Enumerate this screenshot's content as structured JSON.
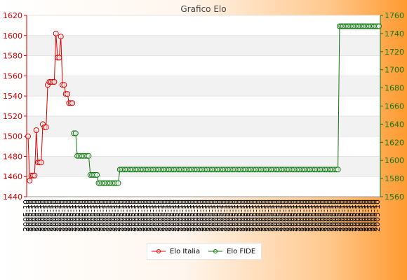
{
  "chart_data": {
    "type": "line",
    "title": "Grafico Elo",
    "y_left": {
      "min": 1440,
      "max": 1620,
      "ticks": [
        "1620",
        "1600",
        "1580",
        "1560",
        "1540",
        "1520",
        "1500",
        "1480",
        "1460",
        "1440"
      ]
    },
    "y_right": {
      "min": 1560,
      "max": 1760,
      "ticks": [
        "1760",
        "1740",
        "1720",
        "1700",
        "1680",
        "1660",
        "1640",
        "1620",
        "1600",
        "1580",
        "1560"
      ]
    },
    "grid": true,
    "legend": "bottom",
    "series": [
      {
        "name": "Elo Italia",
        "axis": "left",
        "color": "#dd0000",
        "points": [
          [
            0,
            1500
          ],
          [
            1,
            1456
          ],
          [
            2,
            1461
          ],
          [
            3,
            1461
          ],
          [
            4,
            1461
          ],
          [
            5,
            1506
          ],
          [
            6,
            1474
          ],
          [
            7,
            1474
          ],
          [
            8,
            1474
          ],
          [
            9,
            1512
          ],
          [
            10,
            1509
          ],
          [
            11,
            1509
          ],
          [
            12,
            1551
          ],
          [
            13,
            1554
          ],
          [
            14,
            1554
          ],
          [
            15,
            1554
          ],
          [
            16,
            1554
          ],
          [
            17,
            1602
          ],
          [
            18,
            1578
          ],
          [
            19,
            1578
          ],
          [
            20,
            1599
          ],
          [
            21,
            1551
          ],
          [
            22,
            1551
          ],
          [
            23,
            1542
          ],
          [
            24,
            1542
          ],
          [
            25,
            1533
          ],
          [
            26,
            1533
          ],
          [
            27,
            1533
          ]
        ]
      },
      {
        "name": "Elo FIDE",
        "axis": "right",
        "color": "#117711",
        "points": [
          [
            28,
            1630
          ],
          [
            29,
            1630
          ],
          [
            30,
            1605
          ],
          [
            31,
            1605
          ],
          [
            32,
            1605
          ],
          [
            33,
            1605
          ],
          [
            34,
            1605
          ],
          [
            35,
            1605
          ],
          [
            36,
            1605
          ],
          [
            37,
            1605
          ],
          [
            38,
            1584
          ],
          [
            39,
            1584
          ],
          [
            40,
            1584
          ],
          [
            41,
            1584
          ],
          [
            42,
            1584
          ],
          [
            43,
            1575
          ],
          [
            44,
            1575
          ],
          [
            45,
            1575
          ],
          [
            46,
            1575
          ],
          [
            47,
            1575
          ],
          [
            48,
            1575
          ],
          [
            49,
            1575
          ],
          [
            50,
            1575
          ],
          [
            51,
            1575
          ],
          [
            52,
            1575
          ],
          [
            53,
            1575
          ],
          [
            54,
            1575
          ],
          [
            55,
            1575
          ],
          [
            56,
            1590
          ],
          [
            57,
            1590
          ],
          [
            58,
            1590
          ],
          [
            59,
            1590
          ],
          [
            60,
            1590
          ],
          [
            61,
            1590
          ],
          [
            62,
            1590
          ],
          [
            63,
            1590
          ],
          [
            64,
            1590
          ],
          [
            65,
            1590
          ],
          [
            66,
            1590
          ],
          [
            67,
            1590
          ],
          [
            68,
            1590
          ],
          [
            69,
            1590
          ],
          [
            70,
            1590
          ],
          [
            71,
            1590
          ],
          [
            72,
            1590
          ],
          [
            73,
            1590
          ],
          [
            74,
            1590
          ],
          [
            75,
            1590
          ],
          [
            76,
            1590
          ],
          [
            77,
            1590
          ],
          [
            78,
            1590
          ],
          [
            79,
            1590
          ],
          [
            80,
            1590
          ],
          [
            81,
            1590
          ],
          [
            82,
            1590
          ],
          [
            83,
            1590
          ],
          [
            84,
            1590
          ],
          [
            85,
            1590
          ],
          [
            86,
            1590
          ],
          [
            87,
            1590
          ],
          [
            88,
            1590
          ],
          [
            89,
            1590
          ],
          [
            90,
            1590
          ],
          [
            91,
            1590
          ],
          [
            92,
            1590
          ],
          [
            93,
            1590
          ],
          [
            94,
            1590
          ],
          [
            95,
            1590
          ],
          [
            96,
            1590
          ],
          [
            97,
            1590
          ],
          [
            98,
            1590
          ],
          [
            99,
            1590
          ],
          [
            100,
            1590
          ],
          [
            101,
            1590
          ],
          [
            102,
            1590
          ],
          [
            103,
            1590
          ],
          [
            104,
            1590
          ],
          [
            105,
            1590
          ],
          [
            106,
            1590
          ],
          [
            107,
            1590
          ],
          [
            108,
            1590
          ],
          [
            109,
            1590
          ],
          [
            110,
            1590
          ],
          [
            111,
            1590
          ],
          [
            112,
            1590
          ],
          [
            113,
            1590
          ],
          [
            114,
            1590
          ],
          [
            115,
            1590
          ],
          [
            116,
            1590
          ],
          [
            117,
            1590
          ],
          [
            118,
            1590
          ],
          [
            119,
            1590
          ],
          [
            120,
            1590
          ],
          [
            121,
            1590
          ],
          [
            122,
            1590
          ],
          [
            123,
            1590
          ],
          [
            124,
            1590
          ],
          [
            125,
            1590
          ],
          [
            126,
            1590
          ],
          [
            127,
            1590
          ],
          [
            128,
            1590
          ],
          [
            129,
            1590
          ],
          [
            130,
            1590
          ],
          [
            131,
            1590
          ],
          [
            132,
            1590
          ],
          [
            133,
            1590
          ],
          [
            134,
            1590
          ],
          [
            135,
            1590
          ],
          [
            136,
            1590
          ],
          [
            137,
            1590
          ],
          [
            138,
            1590
          ],
          [
            139,
            1590
          ],
          [
            140,
            1590
          ],
          [
            141,
            1590
          ],
          [
            142,
            1590
          ],
          [
            143,
            1590
          ],
          [
            144,
            1590
          ],
          [
            145,
            1590
          ],
          [
            146,
            1590
          ],
          [
            147,
            1590
          ],
          [
            148,
            1590
          ],
          [
            149,
            1590
          ],
          [
            150,
            1590
          ],
          [
            151,
            1590
          ],
          [
            152,
            1590
          ],
          [
            153,
            1590
          ],
          [
            154,
            1590
          ],
          [
            155,
            1590
          ],
          [
            156,
            1590
          ],
          [
            157,
            1590
          ],
          [
            158,
            1590
          ],
          [
            159,
            1590
          ],
          [
            160,
            1590
          ],
          [
            161,
            1590
          ],
          [
            162,
            1590
          ],
          [
            163,
            1590
          ],
          [
            164,
            1590
          ],
          [
            165,
            1590
          ],
          [
            166,
            1590
          ],
          [
            167,
            1590
          ],
          [
            168,
            1590
          ],
          [
            169,
            1590
          ],
          [
            170,
            1590
          ],
          [
            171,
            1590
          ],
          [
            172,
            1590
          ],
          [
            173,
            1590
          ],
          [
            174,
            1590
          ],
          [
            175,
            1590
          ],
          [
            176,
            1590
          ],
          [
            177,
            1590
          ],
          [
            178,
            1590
          ],
          [
            179,
            1590
          ],
          [
            180,
            1590
          ],
          [
            181,
            1590
          ],
          [
            182,
            1590
          ],
          [
            183,
            1590
          ],
          [
            184,
            1590
          ],
          [
            185,
            1590
          ],
          [
            186,
            1590
          ],
          [
            187,
            1590
          ],
          [
            188,
            1590
          ],
          [
            189,
            1590
          ],
          [
            190,
            1748
          ],
          [
            191,
            1748
          ],
          [
            192,
            1748
          ],
          [
            193,
            1748
          ],
          [
            194,
            1748
          ],
          [
            195,
            1748
          ],
          [
            196,
            1748
          ],
          [
            197,
            1748
          ],
          [
            198,
            1748
          ],
          [
            199,
            1748
          ],
          [
            200,
            1748
          ],
          [
            201,
            1748
          ],
          [
            202,
            1748
          ],
          [
            203,
            1748
          ],
          [
            204,
            1748
          ],
          [
            205,
            1748
          ],
          [
            206,
            1748
          ],
          [
            207,
            1748
          ],
          [
            208,
            1748
          ],
          [
            209,
            1748
          ],
          [
            210,
            1748
          ],
          [
            211,
            1748
          ],
          [
            212,
            1748
          ],
          [
            213,
            1748
          ],
          [
            214,
            1748
          ]
        ]
      }
    ],
    "x_tick_label": "2005-10"
  },
  "legend": {
    "italia": "Elo Italia",
    "fide": "Elo FIDE"
  }
}
